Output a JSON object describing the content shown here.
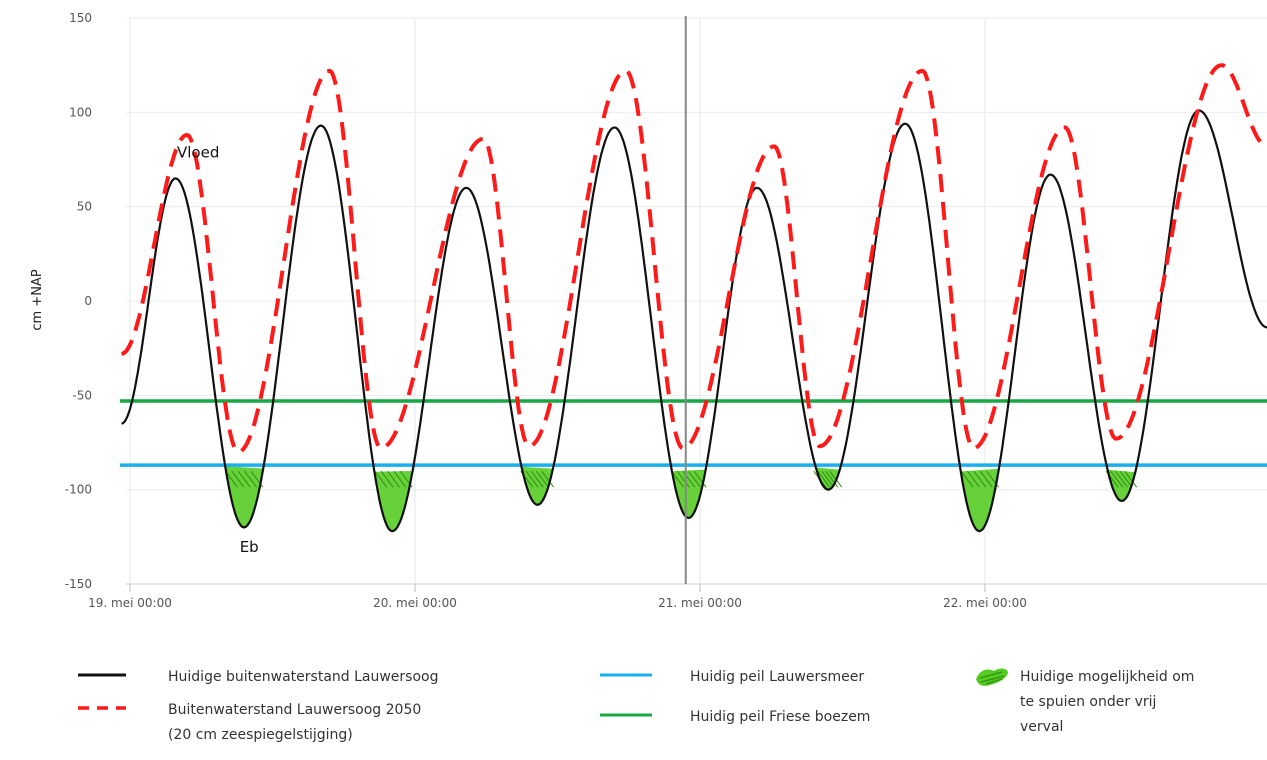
{
  "chart_data": {
    "type": "line",
    "ylabel": "cm +NAP",
    "ylim": [
      -150,
      150
    ],
    "yticks": [
      -150,
      -100,
      -50,
      0,
      50,
      100,
      150
    ],
    "xlim": [
      -0.05,
      4.4
    ],
    "xticks": [
      {
        "value": 0,
        "label": "19. mei 00:00"
      },
      {
        "value": 1,
        "label": "20. mei 00:00"
      },
      {
        "value": 2,
        "label": "21. mei 00:00"
      },
      {
        "value": 3,
        "label": "22. mei 00:00"
      }
    ],
    "grid": true,
    "series": [
      {
        "name": "Huidige buitenwaterstand Lauwersoog",
        "color": "#111111",
        "style": "solid",
        "x": [
          -0.03,
          0.16,
          0.4,
          0.67,
          0.92,
          1.18,
          1.43,
          1.7,
          1.96,
          2.2,
          2.45,
          2.72,
          2.98,
          3.23,
          3.48,
          3.75,
          3.99
        ],
        "y": [
          -65,
          65,
          -120,
          93,
          -122,
          60,
          -108,
          92,
          -115,
          60,
          -100,
          94,
          -122,
          67,
          -106,
          101,
          -14
        ]
      },
      {
        "name": "Buitenwaterstand Lauwersoog 2050 (20 cm zeespiegelstijging)",
        "color": "#ff1a1a",
        "style": "dashed",
        "x": [
          -0.03,
          0.2,
          0.38,
          0.7,
          0.88,
          1.24,
          1.4,
          1.74,
          1.94,
          2.26,
          2.42,
          2.78,
          2.96,
          3.28,
          3.46,
          3.83,
          3.99
        ],
        "y": [
          -28,
          88,
          -80,
          122,
          -78,
          86,
          -77,
          122,
          -78,
          82,
          -77,
          122,
          -78,
          92,
          -73,
          125,
          82
        ]
      }
    ],
    "reference_lines": [
      {
        "name": "Huidig peil Lauwersmeer",
        "y": -87,
        "color": "#1ab0f0"
      },
      {
        "name": "Huidig peil Friese boezem",
        "y": -53,
        "color": "#17a845"
      }
    ],
    "vertical_marker": {
      "x": 1.95,
      "color": "#888888"
    },
    "annotations": [
      {
        "text": "Vloed",
        "x": 0.2,
        "y": 76
      },
      {
        "text": "Eb",
        "x": 0.42,
        "y": -133
      }
    ],
    "shaded_areas_name": "Huidige mogelijkheid om te spuien onder vrij verval",
    "shaded_color": "#55cc22"
  },
  "legend": {
    "items": [
      {
        "key": "black",
        "lines": [
          "Huidige buitenwaterstand Lauwersoog"
        ]
      },
      {
        "key": "red",
        "lines": [
          "Buitenwaterstand Lauwersoog 2050",
          "(20 cm zeespiegelstijging)"
        ]
      },
      {
        "key": "blue",
        "lines": [
          "Huidig peil Lauwersmeer"
        ]
      },
      {
        "key": "green",
        "lines": [
          "Huidig peil Friese boezem"
        ]
      },
      {
        "key": "shade",
        "lines": [
          "Huidige mogelijkheid om",
          "te spuien onder vrij",
          "verval"
        ]
      }
    ]
  }
}
